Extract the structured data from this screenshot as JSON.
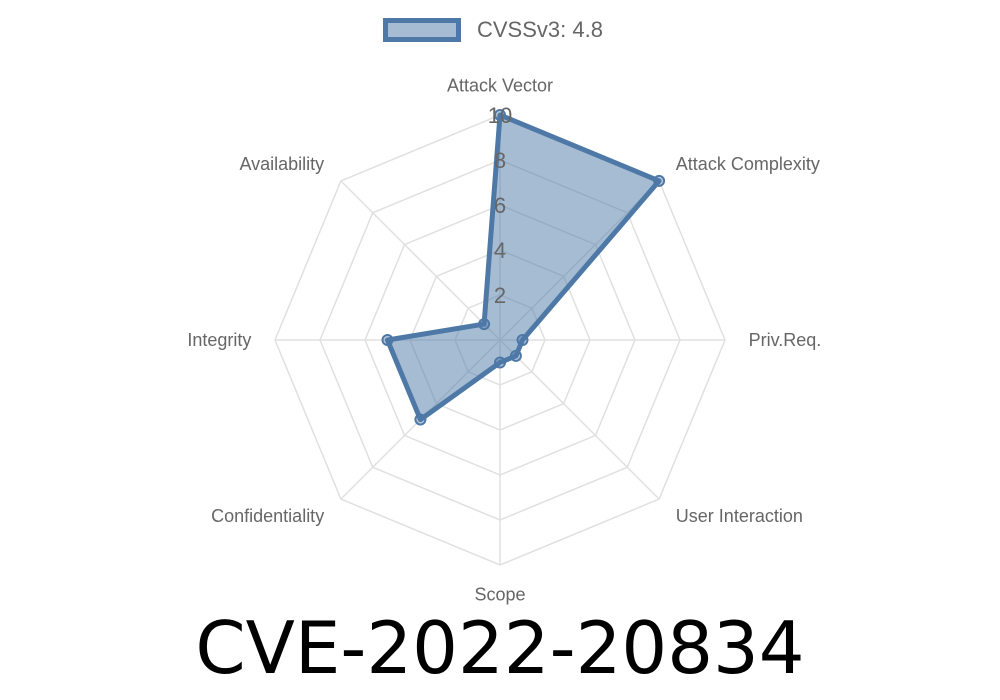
{
  "chart_data": {
    "type": "radar",
    "categories": [
      "Attack Vector",
      "Attack Complexity",
      "Priv.Req.",
      "User Interaction",
      "Scope",
      "Confidentiality",
      "Integrity",
      "Availability"
    ],
    "series": [
      {
        "name": "CVSSv3: 4.8",
        "values": [
          10,
          10,
          1,
          1,
          1,
          5,
          5,
          1
        ],
        "color": "#4e79a7"
      }
    ],
    "rlim": [
      0,
      10
    ],
    "ticks": [
      "2",
      "4",
      "6",
      "8",
      "10"
    ],
    "tick_values": [
      2,
      4,
      6,
      8,
      10
    ],
    "grid": true,
    "legend": "top"
  },
  "title": "CVE-2022-20834"
}
